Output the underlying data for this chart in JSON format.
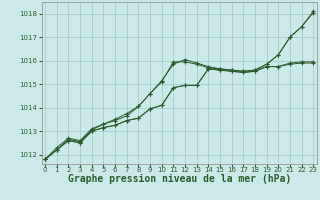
{
  "background_color": "#cce9e9",
  "grid_color": "#aacccc",
  "line_color": "#2d5a2d",
  "xlabel": "Graphe pression niveau de la mer (hPa)",
  "xlabel_fontsize": 7,
  "ytick_labels": [
    "1012",
    "1013",
    "1014",
    "1015",
    "1016",
    "1017",
    "1018"
  ],
  "yticks": [
    1012,
    1013,
    1014,
    1015,
    1016,
    1017,
    1018
  ],
  "xticks": [
    0,
    1,
    2,
    3,
    4,
    5,
    6,
    7,
    8,
    9,
    10,
    11,
    12,
    13,
    14,
    15,
    16,
    17,
    18,
    19,
    20,
    21,
    22,
    23
  ],
  "ylim": [
    1011.6,
    1018.5
  ],
  "xlim": [
    -0.3,
    23.3
  ],
  "series": [
    [
      1011.8,
      1012.2,
      1012.65,
      1012.55,
      1013.05,
      1013.3,
      1013.5,
      1013.75,
      1014.05,
      1014.6,
      1015.1,
      1015.95,
      1015.95,
      1015.85,
      1015.7,
      1015.65,
      1015.6,
      1015.55,
      1015.6,
      1015.85,
      1016.25,
      1017.0,
      1017.45,
      1018.05
    ],
    [
      1011.8,
      1012.2,
      1012.6,
      1012.5,
      1013.0,
      1013.15,
      1013.25,
      1013.45,
      1013.55,
      1013.95,
      1014.1,
      1014.85,
      1014.95,
      1014.95,
      1015.65,
      1015.6,
      1015.55,
      1015.5,
      1015.55,
      1015.75,
      1015.75,
      1015.9,
      1015.95,
      1015.95
    ],
    [
      1011.8,
      1012.2,
      1012.6,
      1012.5,
      1013.0,
      1013.15,
      1013.25,
      1013.45,
      1013.55,
      1013.95,
      1014.1,
      1014.85,
      1014.95,
      1014.95,
      1015.65,
      1015.6,
      1015.55,
      1015.5,
      1015.55,
      1015.75,
      1015.75,
      1015.85,
      1015.9,
      1015.9
    ],
    [
      1011.8,
      1012.3,
      1012.7,
      1012.6,
      1013.1,
      1013.3,
      1013.45,
      1013.65,
      1014.05,
      1014.6,
      1015.15,
      1015.85,
      1016.05,
      1015.9,
      1015.75,
      1015.65,
      1015.6,
      1015.55,
      1015.6,
      1015.85,
      1016.25,
      1017.0,
      1017.45,
      1018.1
    ]
  ]
}
